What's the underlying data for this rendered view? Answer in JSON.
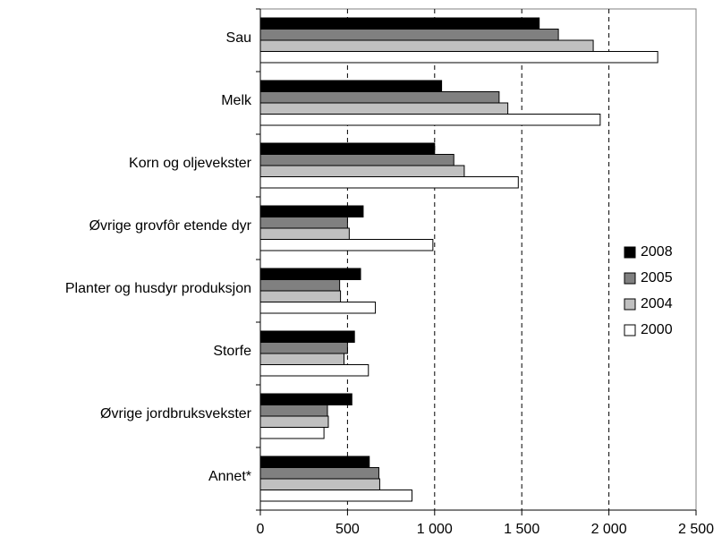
{
  "chart_data": {
    "type": "barh",
    "categories": [
      "Sau",
      "Melk",
      "Korn og oljevekster",
      "Øvrige grovfôr etende dyr",
      "Planter og husdyr produksjon",
      "Storfe",
      "Øvrige jordbruksvekster",
      "Annet*"
    ],
    "series": [
      {
        "name": "2008",
        "color": "#000000",
        "values": [
          1600,
          1040,
          1000,
          590,
          575,
          540,
          525,
          625
        ]
      },
      {
        "name": "2005",
        "color": "#808080",
        "values": [
          1710,
          1370,
          1110,
          500,
          455,
          500,
          385,
          680
        ]
      },
      {
        "name": "2004",
        "color": "#c0c0c0",
        "values": [
          1910,
          1420,
          1170,
          510,
          460,
          480,
          390,
          685
        ]
      },
      {
        "name": "2000",
        "color": "#ffffff",
        "values": [
          2280,
          1950,
          1480,
          990,
          660,
          620,
          365,
          870
        ]
      }
    ],
    "xlim": [
      0,
      2500
    ],
    "xticks": [
      0,
      500,
      {
        "value": 1000,
        "label": "1 000"
      },
      {
        "value": 1500,
        "label": "1 500"
      },
      {
        "value": 2000,
        "label": "2 000"
      },
      {
        "value": 2500,
        "label": "2 500"
      }
    ],
    "grid": true,
    "legend": "right"
  }
}
